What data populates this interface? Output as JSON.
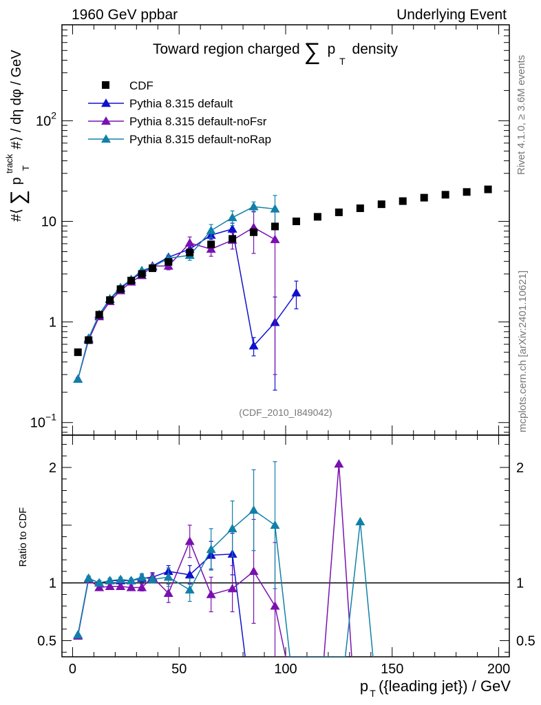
{
  "header": {
    "left": "1960 GeV ppbar",
    "right": "Underlying Event"
  },
  "side_labels": {
    "rivet": "Rivet 4.1.0, ≥ 3.6M events",
    "mcplots": "mcplots.cern.ch [arXiv:2401.10621]"
  },
  "chart_data": {
    "type": "line",
    "title": "Toward region charged ∑ p_T density",
    "title_parts": {
      "main": "Toward region charged",
      "sum": "∑",
      "p": "p",
      "sub": "T",
      "tail": "density"
    },
    "analysis_tag": "(CDF_2010_I849042)",
    "xlabel": "p_T({leading jet}) / GeV",
    "xlabel_parts": {
      "p": "p",
      "sub": "T",
      "tail": "({leading jet}) / GeV"
    },
    "ylabel": "#⟨ ∑ p_T^track #⟩ / dη dφ / GeV",
    "ylabel_parts": {
      "a": "#⟨",
      "sum": "∑",
      "p": "p",
      "sup": "track",
      "sub": "T",
      "b": "#⟩ / dη dφ / GeV"
    },
    "ratio_ylabel": "Ratio to CDF",
    "xlim": [
      -5,
      205
    ],
    "ylim_log": [
      0.075,
      900
    ],
    "ratio_ylim": [
      0.36,
      2.28
    ],
    "x_ticks": [
      "0",
      "50",
      "100",
      "150",
      "200"
    ],
    "x_tick_values": [
      0,
      50,
      100,
      150,
      200
    ],
    "y_ticks": [
      {
        "value": 0.1,
        "base": "10",
        "exp": "−1"
      },
      {
        "value": 1,
        "base": "1",
        "exp": ""
      },
      {
        "value": 10,
        "base": "10",
        "exp": ""
      },
      {
        "value": 100,
        "base": "10",
        "exp": "2"
      }
    ],
    "ratio_ticks": [
      {
        "value": 0.5,
        "label": "0.5"
      },
      {
        "value": 1,
        "label": "1"
      },
      {
        "value": 2,
        "label": "2"
      }
    ],
    "legend": [
      {
        "name": "CDF",
        "color": "#000000",
        "marker": "square"
      },
      {
        "name": "Pythia 8.315 default",
        "color": "#1010cc",
        "marker": "triangle"
      },
      {
        "name": "Pythia 8.315 default-noFsr",
        "color": "#7a10b0",
        "marker": "triangle"
      },
      {
        "name": "Pythia 8.315 default-noRap",
        "color": "#1080a8",
        "marker": "triangle"
      }
    ],
    "data": {
      "name": "CDF",
      "x": [
        2.5,
        7.5,
        12.5,
        17.5,
        22.5,
        27.5,
        32.5,
        37.5,
        45,
        55,
        65,
        75,
        85,
        95,
        105,
        115,
        125,
        135,
        145,
        155,
        165,
        175,
        185,
        195
      ],
      "y": [
        0.5,
        0.66,
        1.18,
        1.65,
        2.12,
        2.58,
        3.0,
        3.42,
        3.95,
        4.9,
        5.9,
        6.7,
        7.8,
        8.9,
        10.0,
        11.1,
        12.3,
        13.5,
        14.8,
        15.9,
        17.2,
        18.4,
        19.6,
        20.8
      ]
    },
    "series": [
      {
        "name": "Pythia 8.315 default",
        "color": "#1010cc",
        "x": [
          2.5,
          7.5,
          12.5,
          17.5,
          22.5,
          27.5,
          32.5,
          37.5,
          45,
          55,
          65,
          75,
          85,
          95,
          105
        ],
        "y": [
          0.27,
          0.68,
          1.18,
          1.68,
          2.15,
          2.62,
          3.12,
          3.6,
          4.4,
          5.3,
          7.3,
          8.4,
          0.58,
          0.99,
          1.95
        ],
        "err": [
          0.01,
          0.02,
          0.03,
          0.04,
          0.05,
          0.06,
          0.08,
          0.1,
          0.2,
          0.4,
          0.7,
          1.2,
          0.12,
          0.78,
          0.6
        ],
        "ratio_x": [
          2.5,
          7.5,
          12.5,
          17.5,
          22.5,
          27.5,
          32.5,
          37.5,
          45,
          55,
          65,
          75,
          81
        ],
        "ratio": [
          0.55,
          1.04,
          1.0,
          1.02,
          1.02,
          1.02,
          1.04,
          1.05,
          1.1,
          1.07,
          1.24,
          1.25,
          0.36
        ],
        "ratio_err": [
          0.01,
          0.02,
          0.02,
          0.02,
          0.02,
          0.02,
          0.03,
          0.03,
          0.05,
          0.08,
          0.12,
          0.18,
          0
        ]
      },
      {
        "name": "Pythia 8.315 default-noFsr",
        "color": "#7a10b0",
        "x": [
          2.5,
          7.5,
          12.5,
          17.5,
          22.5,
          27.5,
          32.5,
          37.5,
          45,
          55,
          65,
          75,
          85,
          95
        ],
        "y": [
          0.27,
          0.66,
          1.13,
          1.6,
          2.05,
          2.5,
          2.9,
          3.6,
          3.6,
          6.1,
          5.3,
          6.5,
          8.7,
          6.6
        ],
        "err": [
          0.01,
          0.02,
          0.03,
          0.04,
          0.05,
          0.06,
          0.08,
          0.12,
          0.3,
          0.9,
          0.8,
          1.2,
          3.9,
          6.3
        ],
        "ratio_x": [
          2.5,
          7.5,
          12.5,
          17.5,
          22.5,
          27.5,
          32.5,
          37.5,
          45,
          55,
          65,
          75,
          85,
          95,
          100,
          118,
          125,
          131
        ],
        "ratio": [
          0.54,
          1.03,
          0.96,
          0.97,
          0.97,
          0.96,
          0.96,
          1.05,
          0.91,
          1.36,
          0.9,
          0.95,
          1.1,
          0.8,
          0.36,
          0.36,
          2.03,
          0.36
        ],
        "ratio_err": [
          0.01,
          0.02,
          0.02,
          0.02,
          0.02,
          0.02,
          0.03,
          0.04,
          0.08,
          0.14,
          0.15,
          0.2,
          0.45,
          0.55,
          0,
          0,
          0,
          0
        ]
      },
      {
        "name": "Pythia 8.315 default-noRap",
        "color": "#1080a8",
        "x": [
          2.5,
          7.5,
          12.5,
          17.5,
          22.5,
          27.5,
          32.5,
          37.5,
          45,
          55,
          65,
          75,
          85,
          95
        ],
        "y": [
          0.27,
          0.69,
          1.19,
          1.7,
          2.2,
          2.65,
          3.25,
          3.52,
          4.3,
          4.6,
          8.1,
          10.9,
          14.0,
          13.3
        ],
        "err": [
          0.01,
          0.02,
          0.03,
          0.04,
          0.05,
          0.06,
          0.08,
          0.1,
          0.3,
          0.5,
          1.2,
          1.8,
          1.6,
          4.8
        ],
        "ratio_x": [
          2.5,
          7.5,
          12.5,
          17.5,
          22.5,
          27.5,
          32.5,
          37.5,
          45,
          55,
          65,
          75,
          85,
          95,
          102,
          128,
          135,
          141
        ],
        "ratio": [
          0.55,
          1.04,
          1.0,
          1.02,
          1.03,
          1.02,
          1.05,
          1.03,
          1.05,
          0.94,
          1.29,
          1.47,
          1.63,
          1.5,
          0.36,
          0.36,
          1.53,
          0.36
        ],
        "ratio_err": [
          0.01,
          0.02,
          0.02,
          0.02,
          0.02,
          0.02,
          0.03,
          0.03,
          0.08,
          0.1,
          0.18,
          0.24,
          0.35,
          0.55,
          0,
          0,
          0,
          0
        ]
      }
    ]
  }
}
